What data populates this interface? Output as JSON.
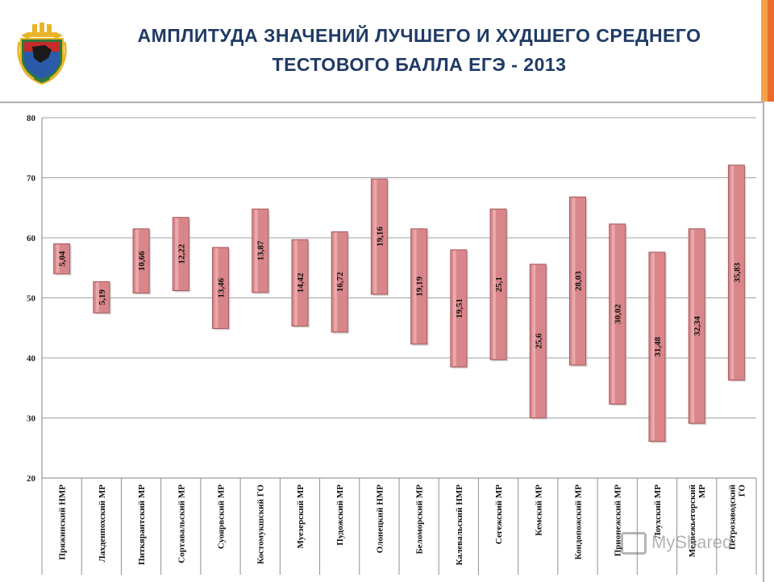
{
  "header": {
    "title_line1": "АМПЛИТУДА ЗНАЧЕНИЙ ЛУЧШЕГО И ХУДШЕГО СРЕДНЕГО",
    "title_line2": "ТЕСТОВОГО БАЛЛА ЕГЭ - 2013",
    "accent_colors": [
      "#f4a14a",
      "#ec6a2a"
    ]
  },
  "watermark": "MyShared",
  "chart_data": {
    "type": "bar",
    "subtype": "floating-range",
    "ylim": [
      20,
      80
    ],
    "yticks": [
      20,
      30,
      40,
      50,
      60,
      70,
      80
    ],
    "grid": true,
    "bar_color": "#d9868a",
    "bar_edge": "#a85a5e",
    "categories": [
      "Пряжинский НМР",
      "Лахденпохский МР",
      "Питкярантский МР",
      "Сортавальский МР",
      "Суоярвский МР",
      "Костомукшский ГО",
      "Муезерский МР",
      "Пудожский МР",
      "Олонецкий НМР",
      "Беломорский МР",
      "Калевальский НМР",
      "Сегежский МР",
      "Кемский МР",
      "Кондопожский МР",
      "Прионежский МР",
      "Лоухский МР",
      "Медвежьегорский МР",
      "Петрозаводский ГО"
    ],
    "low": [
      54.0,
      47.5,
      50.8,
      51.2,
      44.9,
      50.9,
      45.3,
      44.3,
      50.6,
      42.3,
      38.5,
      39.7,
      30.0,
      38.8,
      32.3,
      26.1,
      29.1,
      36.3
    ],
    "high": [
      59.0,
      52.7,
      61.5,
      63.4,
      58.4,
      64.8,
      59.7,
      61.0,
      69.8,
      61.5,
      58.0,
      64.8,
      55.6,
      66.8,
      62.3,
      57.6,
      61.5,
      72.1
    ],
    "labels": [
      "5,04",
      "5,19",
      "10,66",
      "12,22",
      "13,46",
      "13,87",
      "14,42",
      "16,72",
      "19,16",
      "19,19",
      "19,51",
      "25,1",
      "25,6",
      "28,03",
      "30,02",
      "31,48",
      "32,34",
      "35,83"
    ]
  }
}
